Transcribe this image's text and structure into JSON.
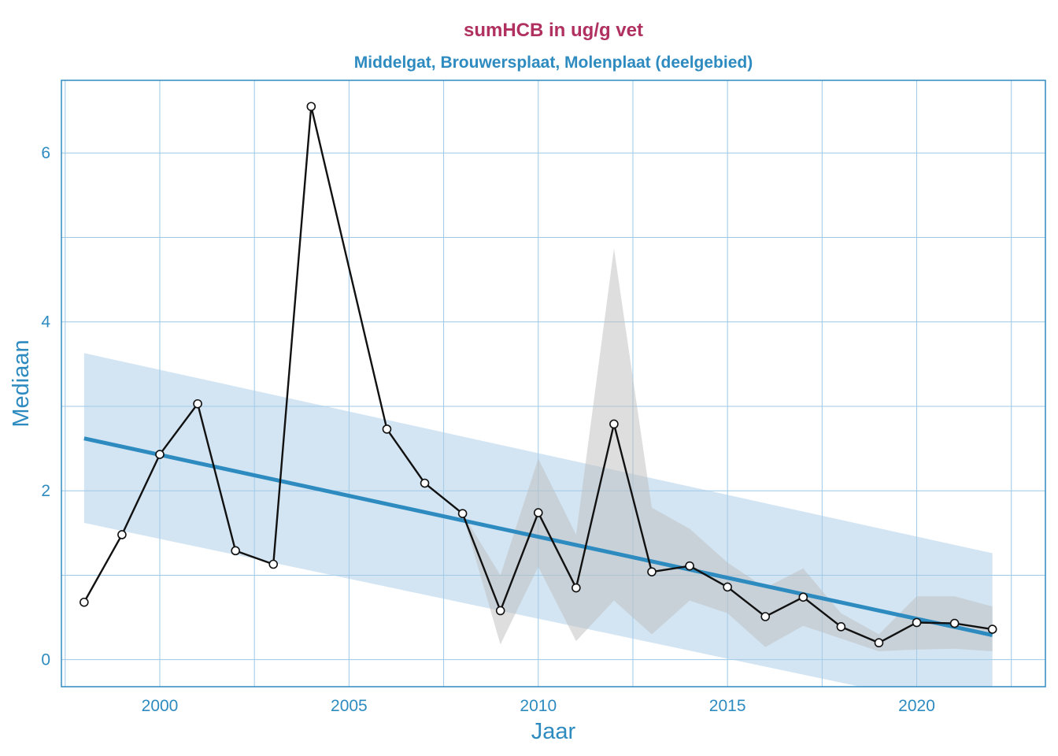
{
  "chart_data": {
    "type": "line",
    "title": "sumHCB in ug/g vet",
    "subtitle": "Middelgat, Brouwersplaat, Molenplaat (deelgebied)",
    "xlabel": "Jaar",
    "ylabel": "Mediaan",
    "xlim": [
      1997.4,
      2023.4
    ],
    "ylim": [
      -0.32,
      6.86
    ],
    "x_ticks": [
      2000,
      2005,
      2010,
      2015,
      2020
    ],
    "y_ticks": [
      0,
      2,
      4,
      6
    ],
    "grid": true,
    "colors": {
      "title": "#B03060",
      "subtitle": "#2E8BC0",
      "axis": "#2E8BC0",
      "grid": "#9CC8E6",
      "series_line": "#111111",
      "trend": "#2E8BC0",
      "trend_band": "#A8CCE8",
      "median_band": "#BEBEBE"
    },
    "series": [
      {
        "kind": "median",
        "x": [
          1998,
          1999,
          2000,
          2001,
          2002,
          2003,
          2004,
          2006,
          2007,
          2008,
          2009,
          2010,
          2011,
          2012,
          2013,
          2014,
          2015,
          2016,
          2017,
          2018,
          2019,
          2020,
          2021,
          2022
        ],
        "values": [
          0.68,
          1.48,
          2.43,
          3.03,
          1.29,
          1.13,
          6.55,
          2.73,
          2.09,
          1.73,
          0.58,
          1.74,
          0.85,
          2.79,
          1.04,
          1.11,
          0.86,
          0.51,
          0.74,
          0.39,
          0.2,
          0.44,
          0.43,
          0.36
        ]
      },
      {
        "kind": "median-band",
        "x": [
          2008,
          2009,
          2010,
          2011,
          2012,
          2013,
          2014,
          2015,
          2016,
          2017,
          2018,
          2019,
          2020,
          2021,
          2022
        ],
        "lower": [
          1.73,
          0.18,
          1.1,
          0.22,
          0.7,
          0.3,
          0.7,
          0.55,
          0.15,
          0.4,
          0.25,
          0.1,
          0.12,
          0.13,
          0.1
        ],
        "upper": [
          1.73,
          1.0,
          2.38,
          1.48,
          4.87,
          1.8,
          1.55,
          1.15,
          0.85,
          1.08,
          0.55,
          0.3,
          0.75,
          0.75,
          0.63
        ]
      },
      {
        "kind": "trend",
        "x": [
          1998,
          2022
        ],
        "values": [
          2.62,
          0.29
        ],
        "band_lower": [
          1.62,
          -0.65
        ],
        "band_upper": [
          3.63,
          1.26
        ]
      }
    ]
  }
}
